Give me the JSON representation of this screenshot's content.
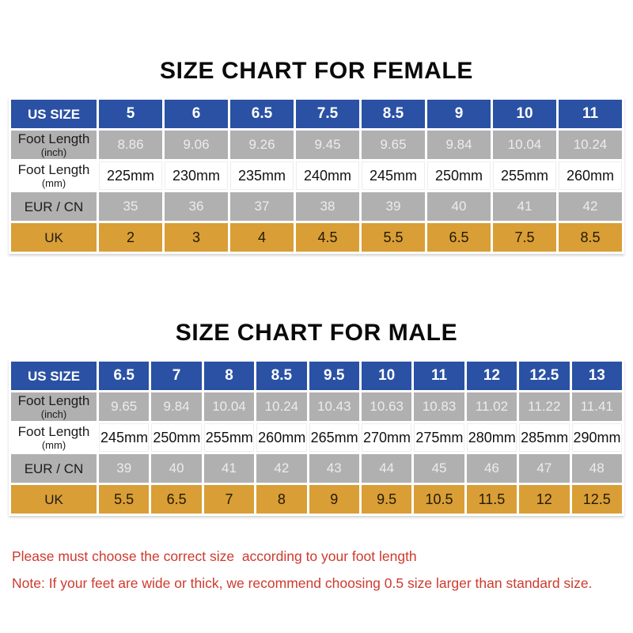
{
  "colors": {
    "header_blue": "#2a51a3",
    "row_gray": "#b0b0b0",
    "row_orange": "#d99e35",
    "note_red": "#cf3a2e",
    "gray_value_text": "#ececec",
    "title_text": "#0a0a0a"
  },
  "chart_data": [
    {
      "type": "table",
      "title": "SIZE CHART FOR FEMALE",
      "rows": [
        {
          "label": "US SIZE",
          "sublabel": "",
          "style": "blue",
          "values": [
            "5",
            "6",
            "6.5",
            "7.5",
            "8.5",
            "9",
            "10",
            "11"
          ]
        },
        {
          "label": "Foot Length",
          "sublabel": "(inch)",
          "style": "gray",
          "values": [
            "8.86",
            "9.06",
            "9.26",
            "9.45",
            "9.65",
            "9.84",
            "10.04",
            "10.24"
          ]
        },
        {
          "label": "Foot Length",
          "sublabel": "(mm)",
          "style": "white",
          "values": [
            "225mm",
            "230mm",
            "235mm",
            "240mm",
            "245mm",
            "250mm",
            "255mm",
            "260mm"
          ]
        },
        {
          "label": "EUR / CN",
          "sublabel": "",
          "style": "gray",
          "values": [
            "35",
            "36",
            "37",
            "38",
            "39",
            "40",
            "41",
            "42"
          ]
        },
        {
          "label": "UK",
          "sublabel": "",
          "style": "orange",
          "values": [
            "2",
            "3",
            "4",
            "4.5",
            "5.5",
            "6.5",
            "7.5",
            "8.5"
          ]
        }
      ]
    },
    {
      "type": "table",
      "title": "SIZE CHART FOR MALE",
      "rows": [
        {
          "label": "US SIZE",
          "sublabel": "",
          "style": "blue",
          "values": [
            "6.5",
            "7",
            "8",
            "8.5",
            "9.5",
            "10",
            "11",
            "12",
            "12.5",
            "13"
          ]
        },
        {
          "label": "Foot Length",
          "sublabel": "(inch)",
          "style": "gray",
          "values": [
            "9.65",
            "9.84",
            "10.04",
            "10.24",
            "10.43",
            "10.63",
            "10.83",
            "11.02",
            "11.22",
            "11.41"
          ]
        },
        {
          "label": "Foot Length",
          "sublabel": "(mm)",
          "style": "white",
          "values": [
            "245mm",
            "250mm",
            "255mm",
            "260mm",
            "265mm",
            "270mm",
            "275mm",
            "280mm",
            "285mm",
            "290mm"
          ]
        },
        {
          "label": "EUR / CN",
          "sublabel": "",
          "style": "gray",
          "values": [
            "39",
            "40",
            "41",
            "42",
            "43",
            "44",
            "45",
            "46",
            "47",
            "48"
          ]
        },
        {
          "label": "UK",
          "sublabel": "",
          "style": "orange",
          "values": [
            "5.5",
            "6.5",
            "7",
            "8",
            "9",
            "9.5",
            "10.5",
            "11.5",
            "12",
            "12.5"
          ]
        }
      ]
    }
  ],
  "notes": [
    "Please must choose the correct size  according to your foot length",
    "Note: If your feet are wide or thick, we recommend choosing 0.5 size larger than standard size."
  ]
}
